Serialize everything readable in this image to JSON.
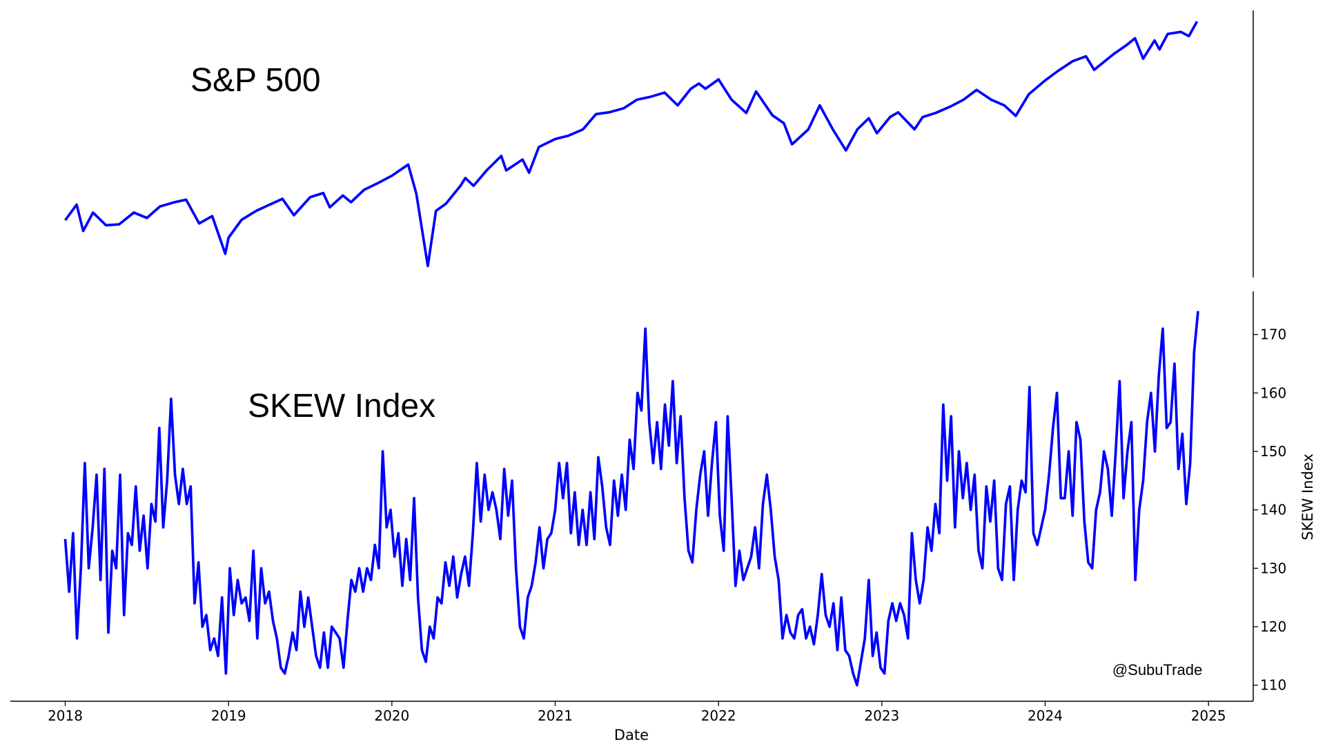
{
  "chart_data": [
    {
      "type": "line",
      "title": "S&P 500",
      "log_scale": true,
      "color": "#0000ff",
      "xlim": [
        2017.664,
        2025.274
      ],
      "ylim": [
        2135,
        6330
      ],
      "x": [
        2018.0,
        2018.07,
        2018.11,
        2018.17,
        2018.25,
        2018.33,
        2018.42,
        2018.5,
        2018.58,
        2018.67,
        2018.74,
        2018.82,
        2018.9,
        2018.98,
        2019.0,
        2019.08,
        2019.17,
        2019.25,
        2019.33,
        2019.4,
        2019.5,
        2019.58,
        2019.62,
        2019.7,
        2019.75,
        2019.83,
        2019.92,
        2020.0,
        2020.1,
        2020.15,
        2020.22,
        2020.27,
        2020.33,
        2020.42,
        2020.45,
        2020.5,
        2020.58,
        2020.67,
        2020.7,
        2020.8,
        2020.84,
        2020.9,
        2021.0,
        2021.08,
        2021.17,
        2021.25,
        2021.33,
        2021.42,
        2021.5,
        2021.58,
        2021.67,
        2021.75,
        2021.83,
        2021.88,
        2021.92,
        2022.0,
        2022.08,
        2022.17,
        2022.23,
        2022.33,
        2022.4,
        2022.45,
        2022.55,
        2022.62,
        2022.7,
        2022.78,
        2022.85,
        2022.92,
        2022.97,
        2023.05,
        2023.1,
        2023.2,
        2023.25,
        2023.33,
        2023.42,
        2023.5,
        2023.58,
        2023.67,
        2023.75,
        2023.82,
        2023.9,
        2024.0,
        2024.08,
        2024.17,
        2024.25,
        2024.3,
        2024.42,
        2024.5,
        2024.55,
        2024.6,
        2024.67,
        2024.7,
        2024.75,
        2024.83,
        2024.88,
        2024.93
      ],
      "values": [
        2695,
        2872,
        2580,
        2780,
        2640,
        2650,
        2780,
        2720,
        2850,
        2900,
        2930,
        2660,
        2740,
        2351,
        2510,
        2700,
        2800,
        2870,
        2940,
        2750,
        2960,
        3010,
        2840,
        2980,
        2900,
        3050,
        3140,
        3230,
        3380,
        3000,
        2237,
        2800,
        2880,
        3100,
        3200,
        3100,
        3300,
        3500,
        3300,
        3450,
        3270,
        3630,
        3750,
        3800,
        3900,
        4150,
        4180,
        4250,
        4400,
        4450,
        4530,
        4300,
        4600,
        4700,
        4600,
        4780,
        4400,
        4170,
        4550,
        4130,
        4000,
        3670,
        3900,
        4300,
        3900,
        3580,
        3900,
        4080,
        3840,
        4100,
        4180,
        3900,
        4100,
        4170,
        4280,
        4400,
        4580,
        4400,
        4300,
        4120,
        4500,
        4760,
        4950,
        5150,
        5250,
        4970,
        5300,
        5500,
        5650,
        5200,
        5600,
        5400,
        5750,
        5800,
        5700,
        6050
      ]
    },
    {
      "type": "line",
      "title": "SKEW Index",
      "xlabel": "Date",
      "ylabel": "SKEW Index",
      "annotation": "@SubuTrade",
      "color": "#0000ff",
      "xlim": [
        2017.664,
        2025.274
      ],
      "xticks": [
        2018,
        2019,
        2020,
        2021,
        2022,
        2023,
        2024,
        2025
      ],
      "ylim": [
        107.25,
        177.4
      ],
      "yticks": [
        110,
        120,
        130,
        140,
        150,
        160,
        170
      ],
      "x": [
        2018.0,
        2018.024,
        2018.048,
        2018.072,
        2018.096,
        2018.12,
        2018.144,
        2018.168,
        2018.192,
        2018.216,
        2018.24,
        2018.264,
        2018.288,
        2018.312,
        2018.336,
        2018.36,
        2018.384,
        2018.408,
        2018.432,
        2018.456,
        2018.48,
        2018.504,
        2018.528,
        2018.552,
        2018.576,
        2018.6,
        2018.624,
        2018.648,
        2018.672,
        2018.696,
        2018.72,
        2018.744,
        2018.768,
        2018.792,
        2018.816,
        2018.84,
        2018.864,
        2018.888,
        2018.912,
        2018.936,
        2018.96,
        2018.984,
        2019.008,
        2019.032,
        2019.056,
        2019.08,
        2019.104,
        2019.128,
        2019.152,
        2019.176,
        2019.2,
        2019.224,
        2019.248,
        2019.272,
        2019.296,
        2019.32,
        2019.344,
        2019.368,
        2019.392,
        2019.416,
        2019.44,
        2019.464,
        2019.488,
        2019.512,
        2019.536,
        2019.56,
        2019.584,
        2019.608,
        2019.632,
        2019.656,
        2019.68,
        2019.704,
        2019.728,
        2019.752,
        2019.776,
        2019.8,
        2019.824,
        2019.848,
        2019.872,
        2019.896,
        2019.92,
        2019.944,
        2019.968,
        2019.992,
        2020.016,
        2020.04,
        2020.064,
        2020.088,
        2020.112,
        2020.136,
        2020.16,
        2020.184,
        2020.208,
        2020.232,
        2020.256,
        2020.28,
        2020.304,
        2020.328,
        2020.352,
        2020.376,
        2020.4,
        2020.424,
        2020.448,
        2020.472,
        2020.496,
        2020.52,
        2020.544,
        2020.568,
        2020.592,
        2020.616,
        2020.64,
        2020.664,
        2020.688,
        2020.712,
        2020.736,
        2020.76,
        2020.784,
        2020.808,
        2020.832,
        2020.856,
        2020.88,
        2020.904,
        2020.928,
        2020.952,
        2020.976,
        2021.0,
        2021.024,
        2021.048,
        2021.072,
        2021.096,
        2021.12,
        2021.144,
        2021.168,
        2021.192,
        2021.216,
        2021.24,
        2021.264,
        2021.288,
        2021.312,
        2021.336,
        2021.36,
        2021.384,
        2021.408,
        2021.432,
        2021.456,
        2021.48,
        2021.504,
        2021.528,
        2021.552,
        2021.576,
        2021.6,
        2021.624,
        2021.648,
        2021.672,
        2021.696,
        2021.72,
        2021.744,
        2021.768,
        2021.792,
        2021.816,
        2021.84,
        2021.864,
        2021.888,
        2021.912,
        2021.936,
        2021.96,
        2021.984,
        2022.008,
        2022.032,
        2022.056,
        2022.08,
        2022.104,
        2022.128,
        2022.152,
        2022.176,
        2022.2,
        2022.224,
        2022.248,
        2022.272,
        2022.296,
        2022.32,
        2022.344,
        2022.368,
        2022.392,
        2022.416,
        2022.44,
        2022.464,
        2022.488,
        2022.512,
        2022.536,
        2022.56,
        2022.584,
        2022.608,
        2022.632,
        2022.656,
        2022.68,
        2022.704,
        2022.728,
        2022.752,
        2022.776,
        2022.8,
        2022.824,
        2022.848,
        2022.872,
        2022.896,
        2022.92,
        2022.944,
        2022.968,
        2022.992,
        2023.016,
        2023.04,
        2023.064,
        2023.088,
        2023.112,
        2023.136,
        2023.16,
        2023.184,
        2023.208,
        2023.232,
        2023.256,
        2023.28,
        2023.304,
        2023.328,
        2023.352,
        2023.376,
        2023.4,
        2023.424,
        2023.448,
        2023.472,
        2023.496,
        2023.52,
        2023.544,
        2023.568,
        2023.592,
        2023.616,
        2023.64,
        2023.664,
        2023.688,
        2023.712,
        2023.736,
        2023.76,
        2023.784,
        2023.808,
        2023.832,
        2023.856,
        2023.88,
        2023.904,
        2023.928,
        2023.952,
        2023.976,
        2024.0,
        2024.024,
        2024.048,
        2024.072,
        2024.096,
        2024.12,
        2024.144,
        2024.168,
        2024.192,
        2024.216,
        2024.24,
        2024.264,
        2024.288,
        2024.312,
        2024.336,
        2024.36,
        2024.384,
        2024.408,
        2024.432,
        2024.456,
        2024.48,
        2024.504,
        2024.528,
        2024.552,
        2024.576,
        2024.6,
        2024.624,
        2024.648,
        2024.672,
        2024.696,
        2024.72,
        2024.744,
        2024.768,
        2024.792,
        2024.816,
        2024.84,
        2024.864,
        2024.888,
        2024.912,
        2024.936
      ],
      "values": [
        135,
        126,
        136,
        118,
        130,
        148,
        130,
        137,
        146,
        128,
        147,
        119,
        133,
        130,
        146,
        122,
        136,
        134,
        144,
        133,
        139,
        130,
        141,
        138,
        154,
        137,
        145,
        159,
        146,
        141,
        147,
        141,
        144,
        124,
        131,
        120,
        122,
        116,
        118,
        115,
        125,
        112,
        130,
        122,
        128,
        124,
        125,
        121,
        133,
        118,
        130,
        124,
        126,
        121,
        118,
        113,
        112,
        115,
        119,
        116,
        126,
        120,
        125,
        120,
        115,
        113,
        119,
        113,
        120,
        119,
        118,
        113,
        121,
        128,
        126,
        130,
        126,
        130,
        128,
        134,
        130,
        150,
        137,
        140,
        132,
        136,
        127,
        135,
        128,
        142,
        125,
        116,
        114,
        120,
        118,
        125,
        124,
        131,
        127,
        132,
        125,
        129,
        132,
        127,
        136,
        148,
        138,
        146,
        140,
        143,
        140,
        135,
        147,
        139,
        145,
        130,
        120,
        118,
        125,
        127,
        131,
        137,
        130,
        135,
        136,
        140,
        148,
        142,
        148,
        136,
        143,
        134,
        140,
        134,
        143,
        135,
        149,
        144,
        137,
        134,
        145,
        139,
        146,
        140,
        152,
        147,
        160,
        157,
        171,
        155,
        148,
        155,
        147,
        158,
        151,
        162,
        148,
        156,
        142,
        133,
        131,
        140,
        146,
        150,
        139,
        148,
        155,
        139,
        133,
        156,
        142,
        127,
        133,
        128,
        130,
        132,
        137,
        130,
        141,
        146,
        140,
        132,
        128,
        118,
        122,
        119,
        118,
        122,
        123,
        118,
        120,
        117,
        122,
        129,
        122,
        120,
        124,
        116,
        125,
        116,
        115,
        112,
        110,
        114,
        118,
        128,
        115,
        119,
        113,
        112,
        121,
        124,
        121,
        124,
        122,
        118,
        136,
        128,
        124,
        128,
        137,
        133,
        141,
        136,
        158,
        145,
        156,
        137,
        150,
        142,
        148,
        140,
        146,
        133,
        130,
        144,
        138,
        145,
        130,
        128,
        141,
        144,
        128,
        140,
        145,
        143,
        161,
        136,
        134,
        137,
        140,
        146,
        154,
        160,
        142,
        142,
        150,
        139,
        155,
        152,
        138,
        131,
        130,
        140,
        143,
        150,
        147,
        139,
        150,
        162,
        142,
        150,
        155,
        128,
        140,
        145,
        155,
        160,
        150,
        163,
        171,
        154,
        155,
        165,
        147,
        153,
        141,
        148,
        167,
        174
      ]
    }
  ]
}
